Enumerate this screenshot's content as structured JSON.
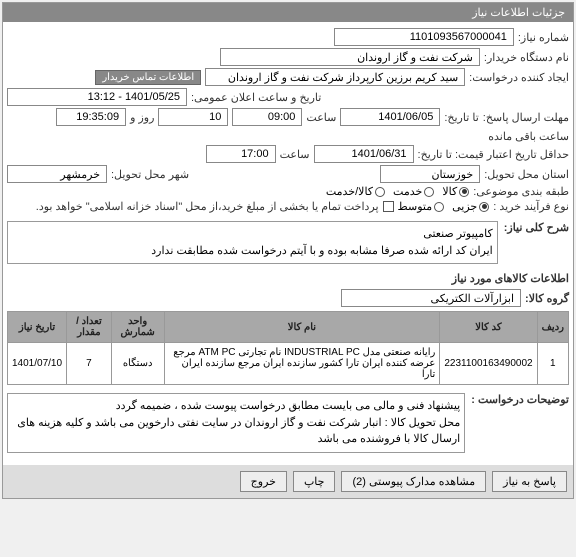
{
  "header": {
    "title": "جزئیات اطلاعات نیاز"
  },
  "info": {
    "need_no_label": "شماره نیاز:",
    "need_no": "1101093567000041",
    "device_label": "نام دستگاه خریدار:",
    "device": "شرکت نفت و گاز اروندان",
    "requester_label": "ایجاد کننده درخواست:",
    "requester": "سید کریم برزین کارپرداز شرکت نفت و گاز اروندان",
    "contact_btn": "اطلاعات تماس خریدار",
    "pub_datetime_label": "تاریخ و ساعت اعلان عمومی:",
    "pub_datetime": "1401/05/25 - 13:12",
    "deadline_label": "مهلت ارسال پاسخ:",
    "deadline_to": "تا تاریخ:",
    "deadline_date": "1401/06/05",
    "time_label": "ساعت",
    "deadline_time": "09:00",
    "days": "10",
    "days_label": "روز و",
    "remain_time": "19:35:09",
    "remain_label": "ساعت باقی مانده",
    "min_label": "حداقل تاریخ اعتبار قیمت: تا تاریخ:",
    "min_date": "1401/06/31",
    "min_time": "17:00",
    "province_label": "استان محل تحویل:",
    "province": "خوزستان",
    "city_label": "شهر محل تحویل:",
    "city": "خرمشهر",
    "class_label": "طبقه بندی موضوعی:",
    "class_kala": "کالا",
    "class_service": "خدمت",
    "class_both": "کالا/خدمت",
    "buy_type_label": "نوع فرآیند خرید :",
    "buy_small": "جزیی",
    "buy_mid": "متوسط",
    "buy_note": "پرداخت تمام یا بخشی از مبلغ خرید،از محل \"اسناد خزانه اسلامی\" خواهد بود."
  },
  "desc": {
    "title_label": "شرح کلی نیاز:",
    "title_text": "کامپیوتر صنعتی\nایران کد ارائه شده صرفا مشابه بوده و با آیتم  درخواست شده مطابقت ندارد",
    "section_label": "اطلاعات کالاهای مورد نیاز",
    "group_label": "گروه کالا:",
    "group": "ابزارآلات الکتریکی"
  },
  "table": {
    "cols": [
      "ردیف",
      "کد کالا",
      "نام کالا",
      "واحد شمارش",
      "تعداد / مقدار",
      "تاریخ نیاز"
    ],
    "rows": [
      [
        "1",
        "2231100163490002",
        "رایانه صنعتی مدل INDUSTRIAL PC نام تجارتی ATM PC مرجع عرضه کننده ایران تارا کشور سازنده ایران مرجع سازنده ایران تارا",
        "دستگاه",
        "7",
        "1401/07/10"
      ]
    ]
  },
  "req_desc": {
    "label": "توضیحات درخواست :",
    "text": "پیشنهاد فنی و مالی می بایست مطابق درخواست پیوست شده ، ضمیمه گردد\nمحل تحویل کالا : انبار شرکت نفت و گاز اروندان در سایت نفتی دارخوین می باشد و کلیه هزینه های ارسال کالا با فروشنده می باشد"
  },
  "footer": {
    "b1": "پاسخ به نیاز",
    "b2": "مشاهده مدارک پیوستی (2)",
    "b3": "چاپ",
    "b4": "خروج"
  }
}
